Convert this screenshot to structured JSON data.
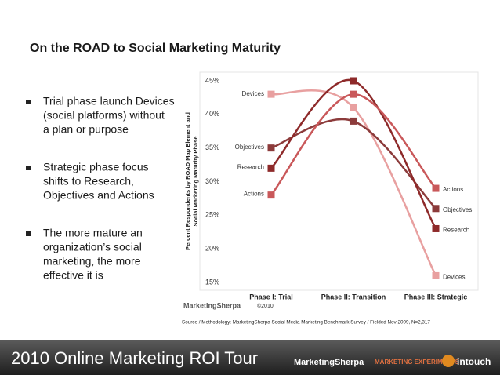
{
  "slide": {
    "title": "On the ROAD to Social Marketing Maturity",
    "bullets": [
      [
        "Trial phase launch Devices",
        "(social platforms) without",
        "a plan or purpose"
      ],
      [
        "Strategic phase focus",
        "shifts to Research,",
        "Objectives and Actions"
      ],
      [
        "The more mature an",
        "organization’s social",
        "marketing, the more",
        "effective it is"
      ]
    ],
    "brand": "MarketingSherpa",
    "copyright": "©2010",
    "source": "Source / Methodology: MarketingSherpa Social Media Marketing Benchmark Survey / Fielded Nov 2009, N=2,317",
    "banner": "2010 Online Marketing ROI Tour",
    "logos": [
      "MarketingSherpa",
      "MARKETING EXPERIMENTS",
      "intouch"
    ]
  },
  "chart_data": {
    "type": "line",
    "y_label": [
      "Percent Respondents by ROAD Map Element and",
      "Social Marketing Maturity Phase"
    ],
    "categories": [
      "Phase I: Trial",
      "Phase II: Transition",
      "Phase III: Strategic"
    ],
    "series": [
      {
        "name": "Devices",
        "color": "#e8a0a0",
        "values": [
          43,
          41,
          16
        ]
      },
      {
        "name": "Objectives",
        "color": "#8c3b3b",
        "values": [
          35,
          39,
          26
        ]
      },
      {
        "name": "Research",
        "color": "#8e2a2a",
        "values": [
          32,
          45,
          23
        ]
      },
      {
        "name": "Actions",
        "color": "#c9585a",
        "values": [
          28,
          43,
          29
        ]
      }
    ],
    "ylim": [
      15,
      45
    ],
    "yticks": [
      {
        "value": 15,
        "label": "15%"
      },
      {
        "value": 20,
        "label": "20%"
      },
      {
        "value": 25,
        "label": "25%"
      },
      {
        "value": 30,
        "label": "30%"
      },
      {
        "value": 35,
        "label": "35%"
      },
      {
        "value": 40,
        "label": "40%"
      },
      {
        "value": 45,
        "label": "45%"
      }
    ],
    "grid": false
  }
}
